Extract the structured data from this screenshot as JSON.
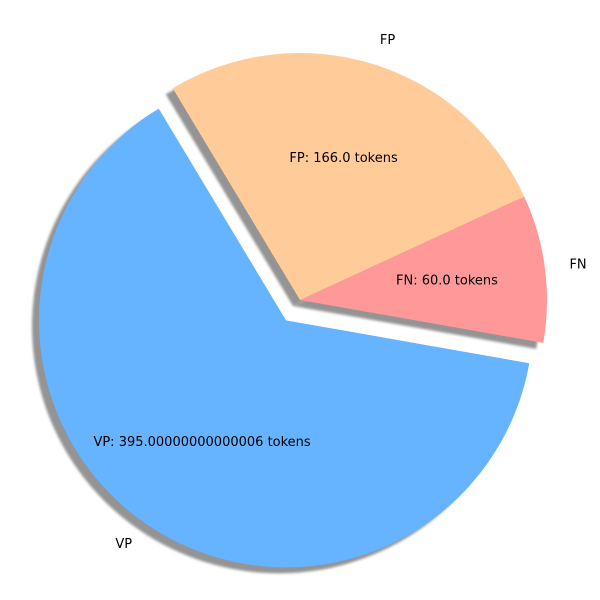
{
  "chart_data": {
    "type": "pie",
    "slices": [
      {
        "label": "FN",
        "value": 60.0,
        "color": "#ff9999",
        "text": "FN: 60.0 tokens",
        "explode": 0.0
      },
      {
        "label": "FP",
        "value": 166.0,
        "color": "#ffcc99",
        "text": "FP: 166.0 tokens",
        "explode": 0.0
      },
      {
        "label": "VP",
        "value": 395.00000000000006,
        "color": "#66b3ff",
        "text": "VP: 395.00000000000006 tokens",
        "explode": 0.1
      }
    ],
    "start_angle_deg": -10,
    "direction": "counterclockwise",
    "shadow": true,
    "title": "",
    "legend": "none"
  }
}
